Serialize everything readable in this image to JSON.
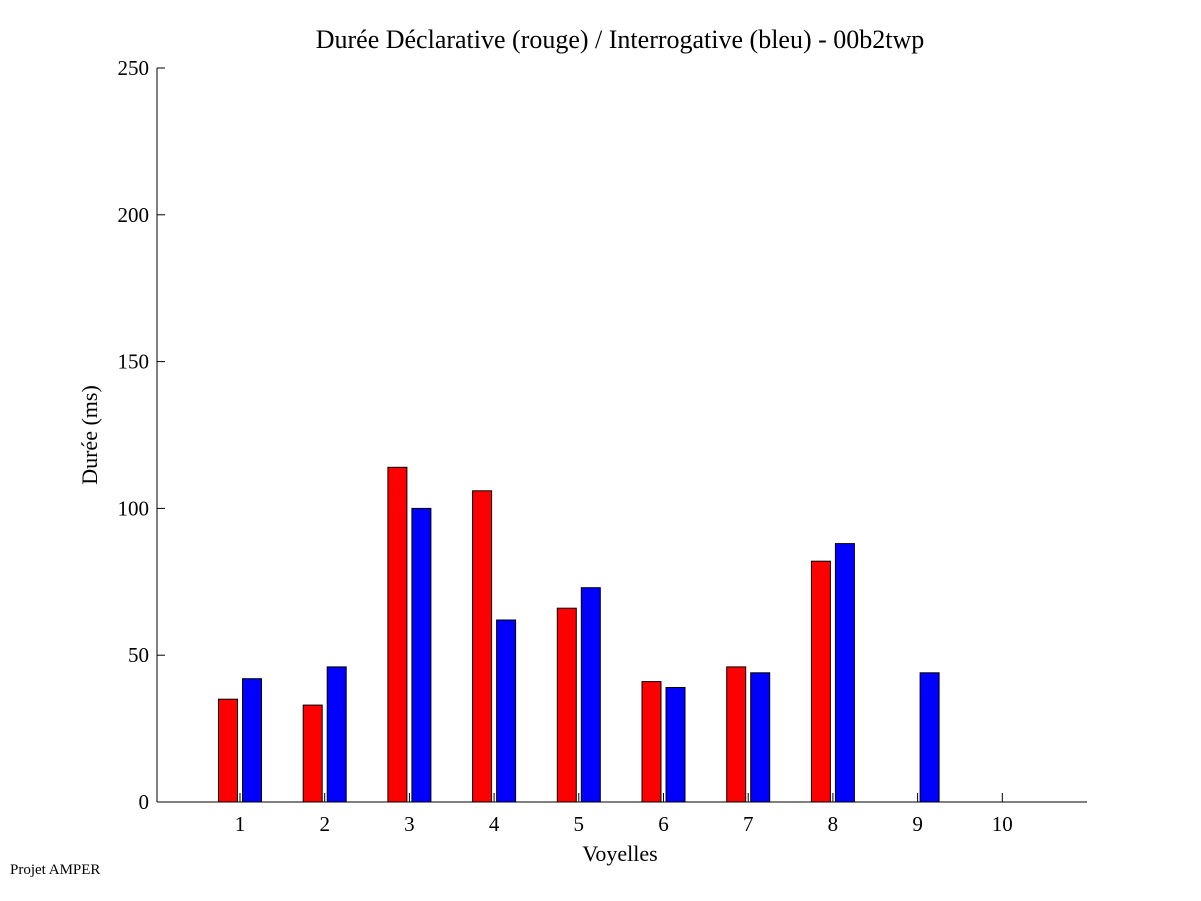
{
  "chart_data": {
    "type": "bar",
    "title": "Durée Déclarative (rouge) / Interrogative (bleu) - 00b2twp",
    "xlabel": "Voyelles",
    "ylabel": "Durée (ms)",
    "ylim": [
      0,
      250
    ],
    "yticks": [
      0,
      50,
      100,
      150,
      200,
      250
    ],
    "categories": [
      "1",
      "2",
      "3",
      "4",
      "5",
      "6",
      "7",
      "8",
      "9",
      "10"
    ],
    "grid": false,
    "series": [
      {
        "color": "#ff0000",
        "values": [
          35,
          33,
          114,
          106,
          66,
          41,
          46,
          82,
          null,
          null
        ]
      },
      {
        "color": "#0000ff",
        "values": [
          42,
          46,
          100,
          62,
          73,
          39,
          44,
          88,
          44,
          null
        ]
      }
    ]
  },
  "footer": {
    "credit": "Projet AMPER"
  }
}
